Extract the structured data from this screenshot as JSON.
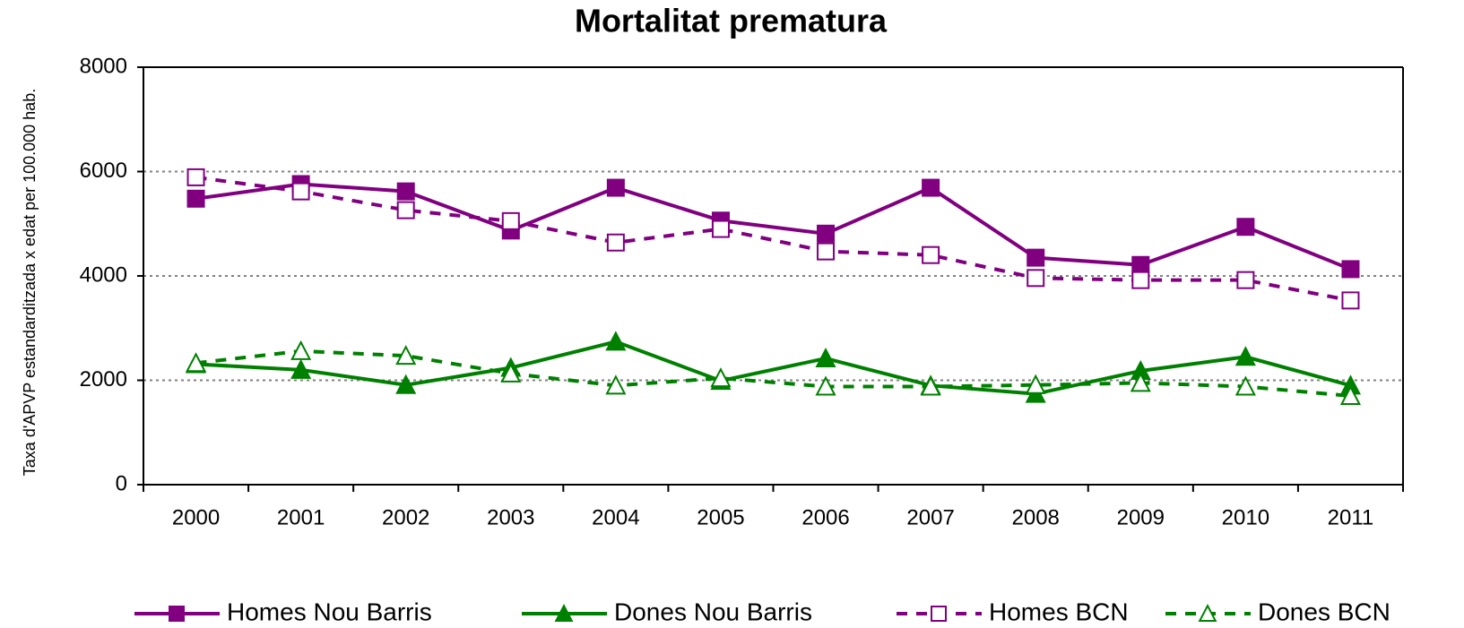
{
  "chart_data": {
    "type": "line",
    "title": "Mortalitat prematura",
    "y_label": "Taxa d'APVP estandarditzada x edat per 100.000 hab.",
    "categories": [
      "2000",
      "2001",
      "2002",
      "2003",
      "2004",
      "2005",
      "2006",
      "2007",
      "2008",
      "2009",
      "2010",
      "2011"
    ],
    "series": [
      {
        "name": "Homes Nou Barris",
        "color": "#800080",
        "marker": "square",
        "filled": true,
        "dashed": false,
        "values": [
          5480,
          5760,
          5620,
          4870,
          5690,
          5060,
          4810,
          5690,
          4350,
          4210,
          4940,
          4130
        ]
      },
      {
        "name": "Dones Nou Barris",
        "color": "#008000",
        "marker": "triangle",
        "filled": true,
        "dashed": false,
        "values": [
          2310,
          2200,
          1910,
          2240,
          2740,
          1990,
          2420,
          1900,
          1740,
          2180,
          2450,
          1900
        ]
      },
      {
        "name": "Homes BCN",
        "color": "#800080",
        "marker": "square",
        "filled": false,
        "dashed": true,
        "values": [
          5890,
          5620,
          5260,
          5050,
          4640,
          4900,
          4470,
          4400,
          3960,
          3920,
          3920,
          3530
        ]
      },
      {
        "name": "Dones BCN",
        "color": "#008000",
        "marker": "triangle",
        "filled": false,
        "dashed": true,
        "values": [
          2330,
          2560,
          2470,
          2130,
          1900,
          2040,
          1880,
          1880,
          1910,
          1950,
          1880,
          1700
        ]
      }
    ],
    "ylim": [
      0,
      8000
    ],
    "yticks": [
      0,
      2000,
      4000,
      6000,
      8000
    ],
    "grid": true,
    "legend": "bottom"
  }
}
